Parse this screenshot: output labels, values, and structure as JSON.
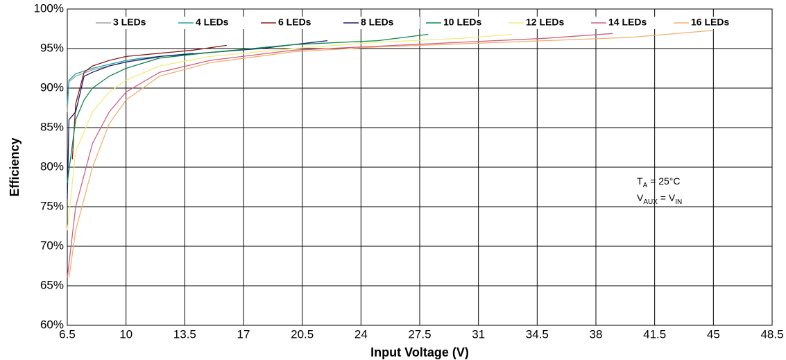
{
  "chart_data": {
    "type": "line",
    "xlabel": "Input Voltage (V)",
    "ylabel": "Efficiency",
    "xlim": [
      6.5,
      48.5
    ],
    "xticks": [
      6.5,
      10,
      13.5,
      17,
      20.5,
      24,
      27.5,
      31,
      34.5,
      38,
      41.5,
      45,
      48.5
    ],
    "ylim": [
      60,
      100
    ],
    "yticks": [
      {
        "value": 60,
        "label": "60%"
      },
      {
        "value": 65,
        "label": "65%"
      },
      {
        "value": 70,
        "label": "70%"
      },
      {
        "value": 75,
        "label": "75%"
      },
      {
        "value": 80,
        "label": "80%"
      },
      {
        "value": 85,
        "label": "85%"
      },
      {
        "value": 90,
        "label": "90%"
      },
      {
        "value": 95,
        "label": "95%"
      },
      {
        "value": 100,
        "label": "100%"
      }
    ],
    "grid": true,
    "legend": "top",
    "series": [
      {
        "name": "3 LEDs",
        "color": "#a0a0a0",
        "x": [
          6.5,
          6.6,
          7,
          8,
          9,
          10,
          11,
          12
        ],
        "values": [
          87,
          90.8,
          91.5,
          92.3,
          92.8,
          93.3,
          93.6,
          93.9
        ]
      },
      {
        "name": "4 LEDs",
        "color": "#1fa3a3",
        "x": [
          6.5,
          6.6,
          7,
          8,
          9,
          10,
          11,
          12,
          13,
          14
        ],
        "values": [
          88,
          91,
          91.8,
          92.5,
          93,
          93.5,
          93.8,
          94,
          94.2,
          94.4
        ]
      },
      {
        "name": "6 LEDs",
        "color": "#8b1a1a",
        "x": [
          6.8,
          7,
          7.5,
          8,
          9,
          10,
          12,
          14,
          16
        ],
        "values": [
          81,
          88,
          92,
          92.8,
          93.5,
          94,
          94.4,
          94.8,
          95.4
        ]
      },
      {
        "name": "8 LEDs",
        "color": "#1a1a6e",
        "x": [
          6.5,
          6.6,
          7,
          7.5,
          8,
          9,
          10,
          12,
          15,
          18,
          22
        ],
        "values": [
          76,
          86,
          87,
          91.5,
          92,
          92.8,
          93.3,
          94,
          94.5,
          95,
          96
        ]
      },
      {
        "name": "10 LEDs",
        "color": "#0a8a4a",
        "x": [
          6.5,
          7,
          7.5,
          8,
          9,
          10,
          12,
          15,
          20,
          25,
          28
        ],
        "values": [
          78,
          86,
          88.5,
          90,
          91.5,
          92.5,
          93.8,
          94.5,
          95.5,
          96,
          96.8
        ]
      },
      {
        "name": "12 LEDs",
        "color": "#eeee80",
        "x": [
          6.5,
          7,
          8,
          9,
          10,
          12,
          15,
          20,
          25,
          30,
          33
        ],
        "values": [
          72,
          82,
          87,
          89.5,
          91,
          92.8,
          94,
          95,
          95.8,
          96.3,
          96.8
        ]
      },
      {
        "name": "14 LEDs",
        "color": "#d06080",
        "x": [
          6.5,
          7,
          8,
          9,
          10,
          12,
          15,
          20,
          25,
          30,
          35,
          39
        ],
        "values": [
          66,
          75,
          83,
          87,
          89.5,
          92,
          93.5,
          94.8,
          95.3,
          95.8,
          96.3,
          96.9
        ]
      },
      {
        "name": "16 LEDs",
        "color": "#f0b070",
        "x": [
          6.6,
          7,
          8,
          9,
          10,
          12,
          15,
          20,
          25,
          30,
          35,
          40,
          45
        ],
        "values": [
          66,
          72,
          80,
          85.5,
          88.5,
          91.5,
          93.2,
          94.6,
          95.2,
          95.6,
          96,
          96.4,
          97.3
        ]
      }
    ],
    "annotations": [
      [
        {
          "t": "T"
        },
        {
          "t": "A",
          "sub": true
        },
        {
          "t": " = 25°C"
        }
      ],
      [
        {
          "t": "V"
        },
        {
          "t": "AUX",
          "sub": true
        },
        {
          "t": " = V"
        },
        {
          "t": "IN",
          "sub": true
        }
      ]
    ]
  }
}
